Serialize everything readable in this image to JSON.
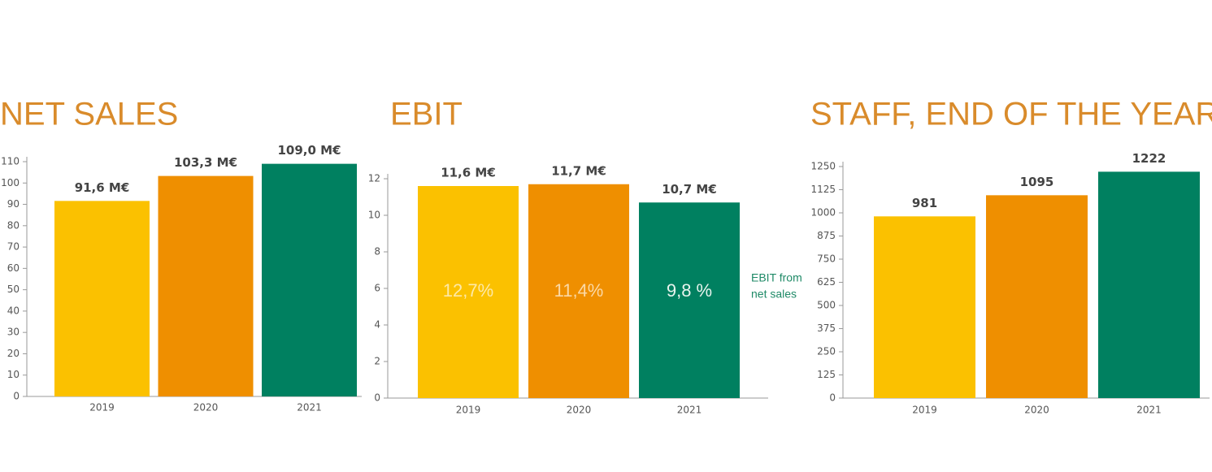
{
  "chart_data": [
    {
      "type": "bar",
      "title": "NET SALES",
      "categories": [
        "2019",
        "2020",
        "2021"
      ],
      "values": [
        91.6,
        103.3,
        109.0
      ],
      "value_labels": [
        "91,6 M€",
        "103,3 M€",
        "109,0 M€"
      ],
      "colors": [
        "#fbc100",
        "#ef8f00",
        "#008060"
      ],
      "ylim": [
        0,
        110
      ],
      "yticks": [
        0,
        10,
        20,
        30,
        40,
        50,
        60,
        70,
        80,
        90,
        100,
        110
      ]
    },
    {
      "type": "bar",
      "title": "EBIT",
      "categories": [
        "2019",
        "2020",
        "2021"
      ],
      "values": [
        11.6,
        11.7,
        10.7
      ],
      "value_labels": [
        "11,6 M€",
        "11,7 M€",
        "10,7 M€"
      ],
      "inner_values": [
        12.7,
        11.4,
        9.8
      ],
      "inner_labels": [
        "12,7%",
        "11,4%",
        "9,8 %"
      ],
      "annotation": [
        "EBIT from",
        "net sales"
      ],
      "colors": [
        "#fbc100",
        "#ef8f00",
        "#008060"
      ],
      "ylim": [
        0,
        12
      ],
      "yticks": [
        0,
        2,
        4,
        6,
        8,
        10,
        12
      ]
    },
    {
      "type": "bar",
      "title": "STAFF, END OF THE YEAR",
      "categories": [
        "2019",
        "2020",
        "2021"
      ],
      "values": [
        981,
        1095,
        1222
      ],
      "colors": [
        "#fbc100",
        "#ef8f00",
        "#008060"
      ],
      "ylim": [
        0,
        1250
      ],
      "yticks": [
        0,
        125,
        250,
        375,
        500,
        625,
        750,
        875,
        1000,
        1125,
        1250
      ]
    }
  ]
}
